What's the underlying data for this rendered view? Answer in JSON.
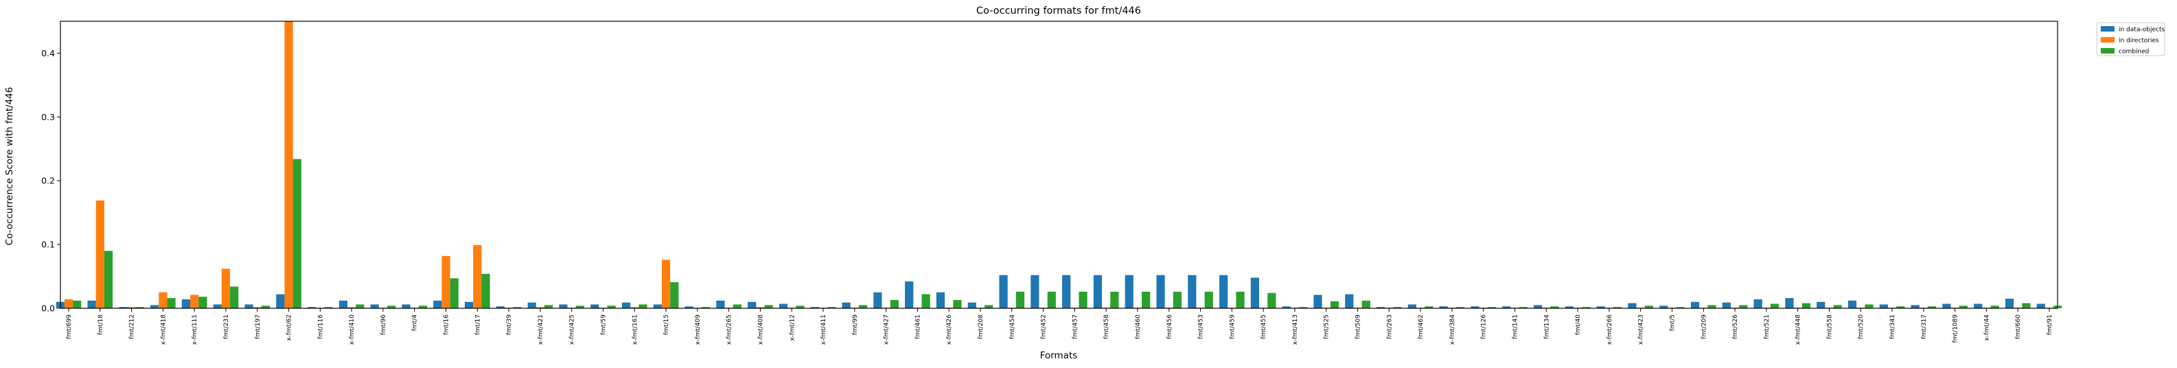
{
  "chart_data": {
    "type": "bar",
    "title": "Co-occurring formats for fmt/446",
    "xlabel": "Formats",
    "ylabel": "Co-occurrence Score with fmt/446",
    "ylim": [
      0,
      0.45
    ],
    "yticks": [
      0.0,
      0.1,
      0.2,
      0.3,
      0.4
    ],
    "legend_position": "outside top-right",
    "categories": [
      "fmt/699",
      "fmt/18",
      "fmt/212",
      "x-fmt/418",
      "x-fmt/111",
      "fmt/231",
      "fmt/197",
      "x-fmt/62",
      "fmt/116",
      "x-fmt/410",
      "fmt/96",
      "fmt/4",
      "fmt/16",
      "fmt/17",
      "fmt/39",
      "x-fmt/421",
      "x-fmt/425",
      "fmt/59",
      "x-fmt/161",
      "fmt/15",
      "x-fmt/409",
      "x-fmt/265",
      "x-fmt/408",
      "x-fmt/12",
      "x-fmt/411",
      "fmt/99",
      "x-fmt/427",
      "fmt/461",
      "x-fmt/426",
      "fmt/208",
      "fmt/454",
      "fmt/452",
      "fmt/457",
      "fmt/458",
      "fmt/460",
      "fmt/456",
      "fmt/453",
      "fmt/459",
      "fmt/455",
      "x-fmt/413",
      "fmt/525",
      "fmt/509",
      "fmt/263",
      "fmt/462",
      "x-fmt/384",
      "fmt/126",
      "fmt/141",
      "fmt/134",
      "fmt/40",
      "x-fmt/266",
      "x-fmt/423",
      "fmt/5",
      "fmt/209",
      "fmt/526",
      "fmt/521",
      "x-fmt/448",
      "fmt/558",
      "fmt/520",
      "fmt/341",
      "fmt/317",
      "fmt/1089",
      "x-fmt/44",
      "fmt/660",
      "fmt/91"
    ],
    "series": [
      {
        "name": "in data-objects",
        "color": "#1f77b4",
        "values": [
          0.01,
          0.012,
          0.002,
          0.005,
          0.014,
          0.006,
          0.006,
          0.022,
          0.002,
          0.012,
          0.006,
          0.006,
          0.012,
          0.01,
          0.003,
          0.009,
          0.006,
          0.006,
          0.009,
          0.006,
          0.003,
          0.012,
          0.01,
          0.007,
          0.002,
          0.009,
          0.025,
          0.042,
          0.025,
          0.009,
          0.052,
          0.052,
          0.052,
          0.052,
          0.052,
          0.052,
          0.052,
          0.052,
          0.048,
          0.003,
          0.021,
          0.022,
          0.002,
          0.006,
          0.003,
          0.003,
          0.003,
          0.005,
          0.003,
          0.003,
          0.008,
          0.004,
          0.01,
          0.009,
          0.014,
          0.016,
          0.01,
          0.012,
          0.006,
          0.005,
          0.007,
          0.007,
          0.015,
          0.007
        ]
      },
      {
        "name": "in directories",
        "color": "#ff7f0e",
        "values": [
          0.014,
          0.169,
          0.002,
          0.025,
          0.021,
          0.062,
          0.002,
          0.45,
          0.001,
          0.002,
          0.001,
          0.001,
          0.082,
          0.099,
          0.001,
          0.002,
          0.001,
          0.001,
          0.002,
          0.076,
          0.001,
          0.001,
          0.002,
          0.001,
          0.001,
          0.001,
          0.001,
          0.001,
          0.001,
          0.001,
          0.001,
          0.001,
          0.001,
          0.001,
          0.001,
          0.001,
          0.001,
          0.001,
          0.001,
          0.001,
          0.001,
          0.001,
          0.001,
          0.001,
          0.001,
          0.001,
          0.001,
          0.001,
          0.001,
          0.001,
          0.001,
          0.001,
          0.001,
          0.001,
          0.001,
          0.001,
          0.001,
          0.001,
          0.001,
          0.001,
          0.001,
          0.001,
          0.001,
          0.001
        ]
      },
      {
        "name": "combined",
        "color": "#2ca02c",
        "values": [
          0.012,
          0.09,
          0.002,
          0.016,
          0.018,
          0.034,
          0.004,
          0.234,
          0.002,
          0.006,
          0.004,
          0.004,
          0.047,
          0.054,
          0.002,
          0.005,
          0.004,
          0.004,
          0.006,
          0.041,
          0.002,
          0.006,
          0.005,
          0.004,
          0.002,
          0.005,
          0.013,
          0.022,
          0.013,
          0.005,
          0.026,
          0.026,
          0.026,
          0.026,
          0.026,
          0.026,
          0.026,
          0.026,
          0.024,
          0.002,
          0.011,
          0.012,
          0.002,
          0.003,
          0.002,
          0.002,
          0.002,
          0.003,
          0.002,
          0.002,
          0.004,
          0.002,
          0.005,
          0.005,
          0.007,
          0.008,
          0.005,
          0.006,
          0.003,
          0.003,
          0.004,
          0.004,
          0.008,
          0.004
        ]
      }
    ]
  }
}
